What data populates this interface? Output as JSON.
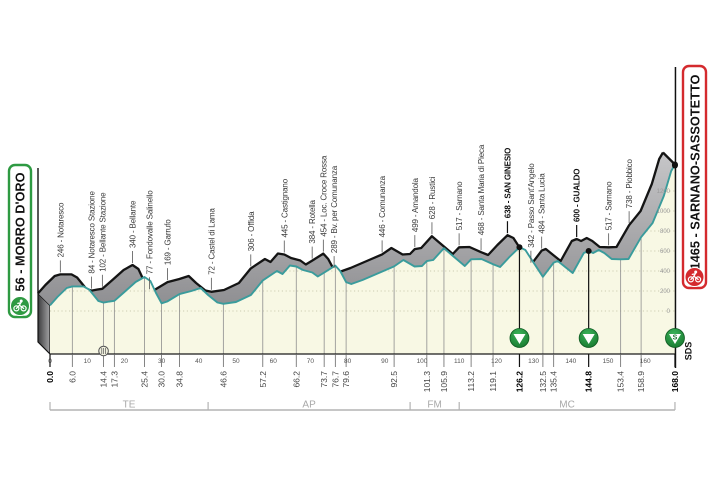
{
  "chart_data": {
    "type": "area",
    "title": "",
    "xlabel": "km",
    "ylabel": "m",
    "x_range": [
      0,
      168
    ],
    "y_range": [
      0,
      1465
    ],
    "grid": true,
    "x_ticks": [
      0,
      10,
      20,
      30,
      40,
      50,
      60,
      70,
      80,
      90,
      100,
      110,
      120,
      130,
      140,
      150,
      160
    ],
    "y_ticks": [
      0,
      200,
      400,
      600,
      800,
      1000,
      1200
    ],
    "start": {
      "km": 0,
      "km_label": "0.0",
      "elevation": 56,
      "name": "MORRO D'ORO",
      "label": "56 - MORRO D'ORO"
    },
    "finish": {
      "km": 168,
      "km_label": "168.0",
      "elevation": 1465,
      "name": "SARNANO-SASSOTETTO",
      "label": "1465 - SARNANO-SASSOTETTO"
    },
    "waypoints": [
      {
        "km": 6.0,
        "km_label": "6.0",
        "elevation": 246,
        "name": "Notaresco",
        "label": "246 - Notaresco",
        "bold": false
      },
      {
        "km": 14.4,
        "km_label": "14.4",
        "elevation": 84,
        "name": "Notaresco Stazione",
        "label": "84 - Notaresco Stazione",
        "bold": false
      },
      {
        "km": 17.3,
        "km_label": "17.3",
        "elevation": 102,
        "name": "Bellante Stazione",
        "label": "102 - Bellante Stazione",
        "bold": false
      },
      {
        "km": 25.4,
        "km_label": "25.4",
        "elevation": 340,
        "name": "Bellante",
        "label": "340 - Bellante",
        "bold": false
      },
      {
        "km": 30.0,
        "km_label": "30.0",
        "elevation": 77,
        "name": "Fondovalle Salinello",
        "label": "77 - Fondovalle Salinello",
        "bold": false
      },
      {
        "km": 34.8,
        "km_label": "34.8",
        "elevation": 169,
        "name": "Garrufo",
        "label": "169 - Garrufo",
        "bold": false
      },
      {
        "km": 46.6,
        "km_label": "46.6",
        "elevation": 72,
        "name": "Castel di Lama",
        "label": "72 - Castel di Lama",
        "bold": false
      },
      {
        "km": 57.2,
        "km_label": "57.2",
        "elevation": 306,
        "name": "Offida",
        "label": "306 - Offida",
        "bold": false
      },
      {
        "km": 66.2,
        "km_label": "66.2",
        "elevation": 445,
        "name": "Castignano",
        "label": "445 - Castignano",
        "bold": false
      },
      {
        "km": 73.7,
        "km_label": "73.7",
        "elevation": 384,
        "name": "Rotella",
        "label": "384 - Rotella",
        "bold": false
      },
      {
        "km": 76.7,
        "km_label": "76.7",
        "elevation": 454,
        "name": "Loc. Croce Rossa",
        "label": "454 - Loc. Croce Rossa",
        "bold": false
      },
      {
        "km": 79.6,
        "km_label": "79.6",
        "elevation": 289,
        "name": "Bv. per Comunanza",
        "label": "289 - Bv. per Comunanza",
        "bold": false
      },
      {
        "km": 92.5,
        "km_label": "92.5",
        "elevation": 446,
        "name": "Comunanza",
        "label": "446 - Comunanza",
        "bold": false
      },
      {
        "km": 101.3,
        "km_label": "101.3",
        "elevation": 499,
        "name": "Amandola",
        "label": "499 - Amandola",
        "bold": false
      },
      {
        "km": 105.9,
        "km_label": "105.9",
        "elevation": 628,
        "name": "Rustici",
        "label": "628 - Rustici",
        "bold": false
      },
      {
        "km": 113.2,
        "km_label": "113.2",
        "elevation": 517,
        "name": "Sarnano",
        "label": "517 - Sarnano",
        "bold": false
      },
      {
        "km": 119.1,
        "km_label": "119.1",
        "elevation": 468,
        "name": "Santa Maria di Pieca",
        "label": "468 - Santa Maria di Pieca",
        "bold": false
      },
      {
        "km": 126.2,
        "km_label": "126.2",
        "elevation": 638,
        "name": "SAN GINESIO",
        "label": "638 - SAN GINESIO",
        "bold": true
      },
      {
        "km": 132.5,
        "km_label": "132.5",
        "elevation": 342,
        "name": "Passo Sant'Angelo",
        "label": "342 - Passo Sant'Angelo",
        "bold": false
      },
      {
        "km": 135.4,
        "km_label": "135.4",
        "elevation": 484,
        "name": "Santa Lucia",
        "label": "484 - Santa Lucia",
        "bold": false
      },
      {
        "km": 144.8,
        "km_label": "144.8",
        "elevation": 600,
        "name": "GUALDO",
        "label": "600 - GUALDO",
        "bold": true
      },
      {
        "km": 153.4,
        "km_label": "153.4",
        "elevation": 517,
        "name": "Sarnano",
        "label": "517 - Sarnano",
        "bold": false
      },
      {
        "km": 158.9,
        "km_label": "158.9",
        "elevation": 738,
        "name": "Piobbico",
        "label": "738 - Piobbico",
        "bold": false
      }
    ],
    "markers": [
      {
        "km": 126.2,
        "type": "climb",
        "icon": "climb-triangle-icon",
        "glyph": ""
      },
      {
        "km": 144.8,
        "type": "climb",
        "icon": "climb-triangle-icon",
        "glyph": ""
      },
      {
        "km": 168.0,
        "type": "climb-finish",
        "icon": "climb-finish-icon",
        "glyph": "S"
      }
    ],
    "sprint_icon": {
      "km": 14.4,
      "icon": "intermediate-sprint-icon"
    },
    "provinces": [
      {
        "code": "TE",
        "from": 0,
        "to": 42.5
      },
      {
        "code": "AP",
        "from": 42.5,
        "to": 96.8
      },
      {
        "code": "FM",
        "from": 96.8,
        "to": 110.0
      },
      {
        "code": "MC",
        "from": 110.0,
        "to": 168.0
      }
    ],
    "profile": [
      [
        0,
        56
      ],
      [
        2,
        140
      ],
      [
        4.5,
        230
      ],
      [
        6,
        246
      ],
      [
        9,
        246
      ],
      [
        10.5,
        215
      ],
      [
        13,
        100
      ],
      [
        14.4,
        84
      ],
      [
        16,
        95
      ],
      [
        17.3,
        102
      ],
      [
        20,
        190
      ],
      [
        23,
        290
      ],
      [
        25.4,
        340
      ],
      [
        27,
        300
      ],
      [
        28.5,
        180
      ],
      [
        30,
        77
      ],
      [
        31.5,
        95
      ],
      [
        34.8,
        169
      ],
      [
        38,
        200
      ],
      [
        40.5,
        230
      ],
      [
        42.5,
        160
      ],
      [
        45,
        85
      ],
      [
        46.6,
        72
      ],
      [
        50,
        90
      ],
      [
        54,
        160
      ],
      [
        57.2,
        306
      ],
      [
        61,
        400
      ],
      [
        62.5,
        370
      ],
      [
        64.5,
        455
      ],
      [
        66.2,
        445
      ],
      [
        68,
        410
      ],
      [
        70.5,
        385
      ],
      [
        72,
        345
      ],
      [
        73.7,
        384
      ],
      [
        76.7,
        454
      ],
      [
        78,
        400
      ],
      [
        79.6,
        289
      ],
      [
        81,
        270
      ],
      [
        84,
        310
      ],
      [
        89,
        390
      ],
      [
        92.5,
        446
      ],
      [
        95,
        510
      ],
      [
        98,
        445
      ],
      [
        100,
        450
      ],
      [
        101.3,
        499
      ],
      [
        103,
        510
      ],
      [
        105.9,
        628
      ],
      [
        108,
        560
      ],
      [
        111.5,
        450
      ],
      [
        113.2,
        517
      ],
      [
        116,
        520
      ],
      [
        119.1,
        468
      ],
      [
        121,
        440
      ],
      [
        123.5,
        540
      ],
      [
        126.2,
        638
      ],
      [
        127.8,
        610
      ],
      [
        129,
        540
      ],
      [
        132.5,
        342
      ],
      [
        135.4,
        484
      ],
      [
        136.5,
        500
      ],
      [
        138.5,
        440
      ],
      [
        140.5,
        380
      ],
      [
        143.5,
        580
      ],
      [
        144.8,
        600
      ],
      [
        146,
        580
      ],
      [
        147.5,
        610
      ],
      [
        149,
        580
      ],
      [
        151,
        520
      ],
      [
        153.4,
        517
      ],
      [
        155.5,
        520
      ],
      [
        158.9,
        738
      ],
      [
        162,
        880
      ],
      [
        165,
        1150
      ],
      [
        167,
        1400
      ],
      [
        168,
        1465
      ]
    ],
    "credit": "SDS"
  },
  "colors": {
    "band_top": "#c6c6c8",
    "band_bottom": "#8f8f92",
    "face": "#f8f8e4",
    "front_line": "#3a9c9c",
    "back_line": "#141414",
    "grid": "#8e8e8e",
    "dotted": "#cdcdb2",
    "start": "#2e9a42",
    "finish": "#d42a2e",
    "marker_dark": "#17792f",
    "marker_light": "#3cb35a",
    "province": "#b3b3b3"
  }
}
